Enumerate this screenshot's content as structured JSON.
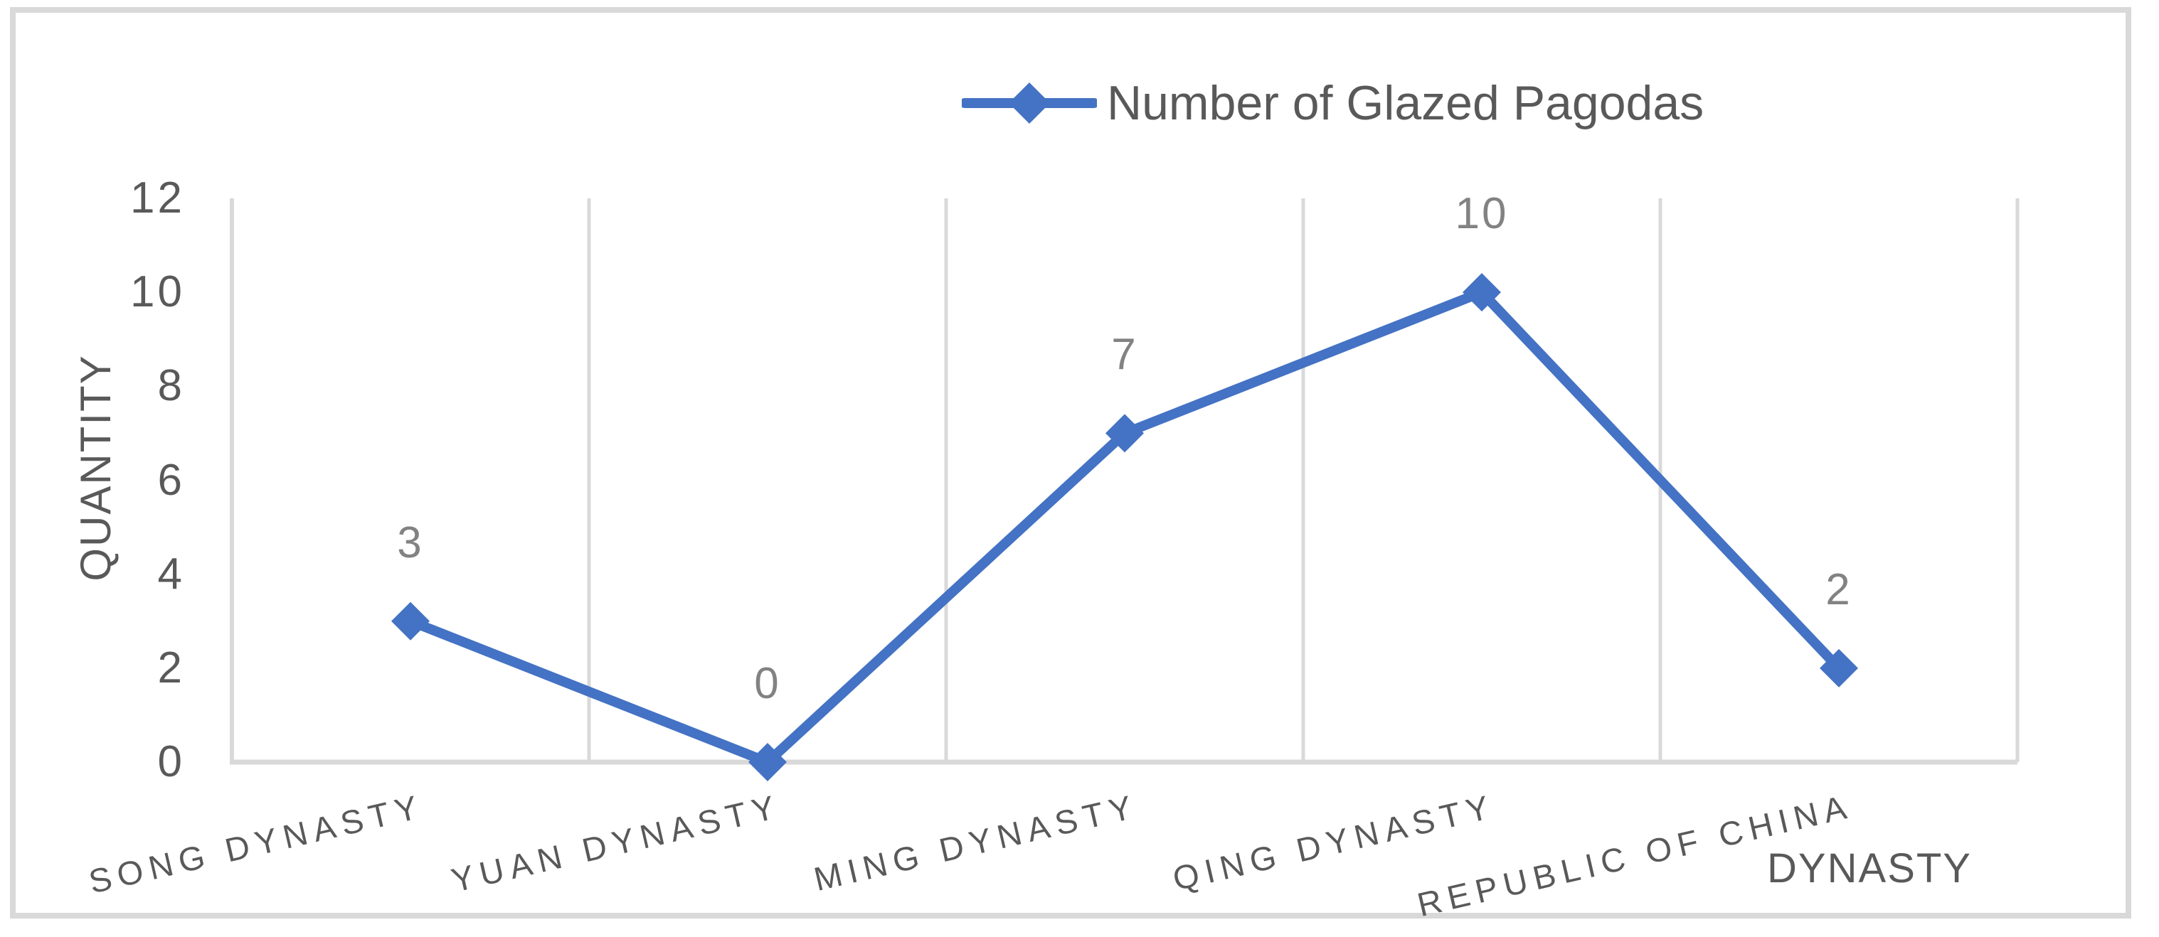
{
  "chart_data": {
    "type": "line",
    "legend": "Number of Glazed Pagodas",
    "legend_position": "top",
    "categories": [
      "SONG DYNASTY",
      "YUAN DYNASTY",
      "MING DYNASTY",
      "QING DYNASTY",
      "REPUBLIC OF CHINA"
    ],
    "values": [
      3,
      0,
      7,
      10,
      2
    ],
    "data_labels": [
      "3",
      "0",
      "7",
      "10",
      "2"
    ],
    "xlabel": "DYNASTY",
    "ylabel": "QUANTITY",
    "ylim": [
      0,
      12
    ],
    "yticks": [
      0,
      2,
      4,
      6,
      8,
      10,
      12
    ],
    "grid": "vertical-only",
    "marker": "diamond",
    "colors": {
      "series": "#4472C4",
      "gridline": "#D9D9D9",
      "axis_line": "#D9D9D9",
      "frame_border": "#D9D9D9",
      "tick_label": "#595959",
      "axis_title": "#595959",
      "legend_text": "#595959",
      "data_label": "#828282",
      "background": "#FFFFFF"
    }
  }
}
